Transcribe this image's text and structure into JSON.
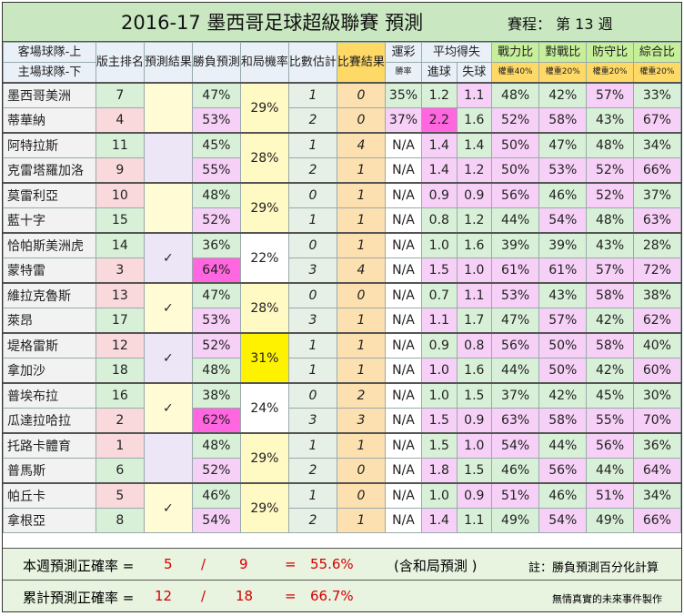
{
  "title": "2016-17 墨西哥足球超級聯賽  預測",
  "round": "賽程： 第 13 週",
  "headers": {
    "away_team": "客場球隊-上",
    "home_team": "主場球隊-下",
    "rank": "版主排名",
    "pred_result": "預測結果",
    "win_pred": "勝負預測",
    "draw_rate": "和局機率",
    "score_est": "比數估計",
    "match_result": "比賽結果",
    "lottery": "運彩",
    "lottery_sub": "勝率",
    "avg_goals": "平均得失",
    "goals_for": "進球",
    "goals_against": "失球",
    "strength": "戰力比",
    "strength_w": "權重40%",
    "h2h": "對戰比",
    "h2h_w": "權重20%",
    "defense": "防守比",
    "defense_w": "權重20%",
    "overall": "綜合比",
    "overall_w": "權重20%"
  },
  "matches": [
    {
      "draw": "29%",
      "check": "",
      "teams": [
        {
          "name": "墨西哥美洲",
          "rank": "7",
          "win": "47%",
          "score": "1",
          "result": "0",
          "lottery": "35%",
          "gf": "1.2",
          "ga": "1.1",
          "strength": "48%",
          "h2h": "42%",
          "defense": "57%",
          "overall": "33%"
        },
        {
          "name": "蒂華納",
          "rank": "4",
          "win": "53%",
          "score": "2",
          "result": "0",
          "lottery": "37%",
          "gf": "2.2",
          "ga": "1.6",
          "strength": "52%",
          "h2h": "58%",
          "defense": "43%",
          "overall": "67%"
        }
      ]
    },
    {
      "draw": "28%",
      "check": "",
      "teams": [
        {
          "name": "阿特拉斯",
          "rank": "11",
          "win": "45%",
          "score": "1",
          "result": "4",
          "lottery": "N/A",
          "gf": "1.4",
          "ga": "1.4",
          "strength": "50%",
          "h2h": "47%",
          "defense": "48%",
          "overall": "34%"
        },
        {
          "name": "克雷塔羅加洛",
          "rank": "9",
          "win": "55%",
          "score": "2",
          "result": "1",
          "lottery": "N/A",
          "gf": "1.4",
          "ga": "1.2",
          "strength": "50%",
          "h2h": "53%",
          "defense": "52%",
          "overall": "66%"
        }
      ]
    },
    {
      "draw": "29%",
      "check": "",
      "teams": [
        {
          "name": "莫雷利亞",
          "rank": "10",
          "win": "48%",
          "score": "0",
          "result": "1",
          "lottery": "N/A",
          "gf": "0.9",
          "ga": "0.9",
          "strength": "56%",
          "h2h": "46%",
          "defense": "52%",
          "overall": "37%"
        },
        {
          "name": "藍十字",
          "rank": "15",
          "win": "52%",
          "score": "1",
          "result": "1",
          "lottery": "N/A",
          "gf": "0.8",
          "ga": "1.2",
          "strength": "44%",
          "h2h": "54%",
          "defense": "48%",
          "overall": "63%"
        }
      ]
    },
    {
      "draw": "22%",
      "check": "✓",
      "teams": [
        {
          "name": "恰帕斯美洲虎",
          "rank": "14",
          "win": "36%",
          "score": "0",
          "result": "1",
          "lottery": "N/A",
          "gf": "1.0",
          "ga": "1.6",
          "strength": "39%",
          "h2h": "39%",
          "defense": "43%",
          "overall": "28%"
        },
        {
          "name": "蒙特雷",
          "rank": "3",
          "win": "64%",
          "score": "3",
          "result": "4",
          "lottery": "N/A",
          "gf": "1.5",
          "ga": "1.0",
          "strength": "61%",
          "h2h": "61%",
          "defense": "57%",
          "overall": "72%"
        }
      ]
    },
    {
      "draw": "28%",
      "check": "✓",
      "teams": [
        {
          "name": "維拉克魯斯",
          "rank": "13",
          "win": "47%",
          "score": "0",
          "result": "0",
          "lottery": "N/A",
          "gf": "0.7",
          "ga": "1.1",
          "strength": "53%",
          "h2h": "43%",
          "defense": "58%",
          "overall": "38%"
        },
        {
          "name": "萊昂",
          "rank": "17",
          "win": "53%",
          "score": "3",
          "result": "1",
          "lottery": "N/A",
          "gf": "1.1",
          "ga": "1.7",
          "strength": "47%",
          "h2h": "57%",
          "defense": "42%",
          "overall": "62%"
        }
      ]
    },
    {
      "draw": "31%",
      "check": "✓",
      "teams": [
        {
          "name": "堤格雷斯",
          "rank": "12",
          "win": "52%",
          "score": "1",
          "result": "1",
          "lottery": "N/A",
          "gf": "0.9",
          "ga": "0.8",
          "strength": "56%",
          "h2h": "50%",
          "defense": "58%",
          "overall": "40%"
        },
        {
          "name": "拿加沙",
          "rank": "18",
          "win": "48%",
          "score": "1",
          "result": "1",
          "lottery": "N/A",
          "gf": "1.0",
          "ga": "1.6",
          "strength": "44%",
          "h2h": "50%",
          "defense": "42%",
          "overall": "60%"
        }
      ]
    },
    {
      "draw": "24%",
      "check": "✓",
      "teams": [
        {
          "name": "普埃布拉",
          "rank": "16",
          "win": "38%",
          "score": "0",
          "result": "2",
          "lottery": "N/A",
          "gf": "1.0",
          "ga": "1.5",
          "strength": "37%",
          "h2h": "42%",
          "defense": "45%",
          "overall": "30%"
        },
        {
          "name": "瓜達拉哈拉",
          "rank": "2",
          "win": "62%",
          "score": "3",
          "result": "3",
          "lottery": "N/A",
          "gf": "1.5",
          "ga": "0.9",
          "strength": "63%",
          "h2h": "58%",
          "defense": "55%",
          "overall": "70%"
        }
      ]
    },
    {
      "draw": "29%",
      "check": "",
      "teams": [
        {
          "name": "托路卡體育",
          "rank": "1",
          "win": "48%",
          "score": "1",
          "result": "1",
          "lottery": "N/A",
          "gf": "1.5",
          "ga": "1.0",
          "strength": "54%",
          "h2h": "44%",
          "defense": "56%",
          "overall": "36%"
        },
        {
          "name": "普馬斯",
          "rank": "6",
          "win": "52%",
          "score": "2",
          "result": "0",
          "lottery": "N/A",
          "gf": "1.8",
          "ga": "1.5",
          "strength": "46%",
          "h2h": "56%",
          "defense": "44%",
          "overall": "64%"
        }
      ]
    },
    {
      "draw": "29%",
      "check": "✓",
      "teams": [
        {
          "name": "帕丘卡",
          "rank": "5",
          "win": "46%",
          "score": "1",
          "result": "0",
          "lottery": "N/A",
          "gf": "1.0",
          "ga": "0.9",
          "strength": "51%",
          "h2h": "46%",
          "defense": "51%",
          "overall": "34%"
        },
        {
          "name": "拿根亞",
          "rank": "8",
          "win": "54%",
          "score": "2",
          "result": "1",
          "lottery": "N/A",
          "gf": "1.4",
          "ga": "1.1",
          "strength": "49%",
          "h2h": "54%",
          "defense": "49%",
          "overall": "66%"
        }
      ]
    }
  ],
  "summary": {
    "weekly_label": "本週預測正確率 =",
    "weekly_correct": "5",
    "weekly_total": "9",
    "weekly_rate": "55.6%",
    "weekly_note": "(含和局預測 )",
    "note": "註：勝負預測百分化計算",
    "total_label": "累計預測正確率 =",
    "total_correct": "12",
    "total_total": "18",
    "total_rate": "66.7%",
    "credit": "無情真實的未來事件製作",
    "slash": "/",
    "equals": "="
  }
}
